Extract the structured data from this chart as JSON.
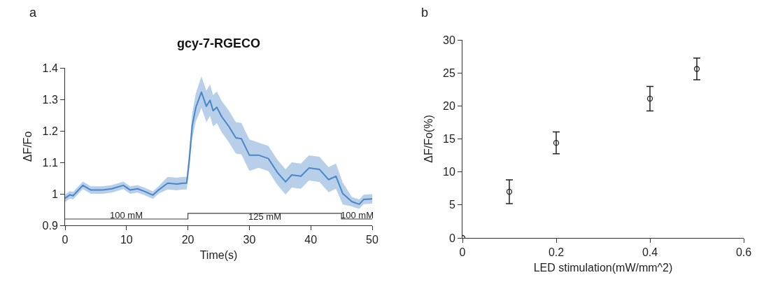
{
  "chart_data": [
    {
      "type": "line",
      "title": "gcy-7-RGECO",
      "xlabel": "Time(s)",
      "ylabel": "ΔF/Fo",
      "xlim": [
        0,
        50
      ],
      "xticks": [
        0,
        10,
        20,
        30,
        40,
        50
      ],
      "ylim": [
        0.9,
        1.4
      ],
      "yticks": [
        0.9,
        1,
        1.1,
        1.2,
        1.3,
        1.4
      ],
      "grid": false,
      "marker": "none",
      "series": [
        {
          "color": "#4a86c8",
          "x": [
            0,
            0.8,
            1.3,
            2.9,
            4.2,
            6.1,
            7.6,
            9.5,
            10.6,
            11.8,
            12.9,
            14.3,
            15.2,
            16.7,
            18.2,
            19.2,
            19.8,
            20.2,
            20.7,
            21.3,
            22.2,
            23.0,
            23.6,
            24.1,
            24.7,
            25.5,
            26.6,
            27.8,
            28.7,
            30.0,
            31.5,
            33.1,
            34.6,
            35.9,
            36.9,
            38.4,
            39.7,
            41.4,
            42.9,
            44.1,
            45.2,
            46.7,
            47.9,
            48.6,
            50
          ],
          "values": [
            0.986,
            0.997,
            0.994,
            1.027,
            1.012,
            1.012,
            1.016,
            1.027,
            1.012,
            1.016,
            1.008,
            0.996,
            1.012,
            1.034,
            1.031,
            1.034,
            1.034,
            1.104,
            1.216,
            1.275,
            1.323,
            1.278,
            1.297,
            1.264,
            1.275,
            1.245,
            1.216,
            1.178,
            1.175,
            1.123,
            1.123,
            1.112,
            1.067,
            1.038,
            1.06,
            1.056,
            1.082,
            1.078,
            1.045,
            1.056,
            1.001,
            0.975,
            0.967,
            0.982,
            0.984
          ],
          "lower": [
            0.974,
            0.985,
            0.982,
            1.015,
            1.0,
            1.0,
            1.004,
            1.015,
            1.0,
            1.004,
            0.996,
            0.984,
            1.0,
            1.014,
            1.011,
            1.014,
            1.014,
            1.074,
            1.176,
            1.23,
            1.273,
            1.228,
            1.247,
            1.214,
            1.225,
            1.195,
            1.166,
            1.128,
            1.125,
            1.073,
            1.083,
            1.072,
            1.027,
            0.998,
            1.02,
            1.016,
            1.042,
            1.038,
            1.005,
            1.016,
            0.966,
            0.96,
            0.952,
            0.967,
            0.969
          ],
          "upper": [
            0.998,
            1.009,
            1.006,
            1.039,
            1.024,
            1.024,
            1.028,
            1.039,
            1.024,
            1.028,
            1.02,
            1.008,
            1.024,
            1.054,
            1.051,
            1.054,
            1.054,
            1.134,
            1.256,
            1.32,
            1.373,
            1.328,
            1.347,
            1.314,
            1.325,
            1.295,
            1.266,
            1.228,
            1.225,
            1.173,
            1.163,
            1.152,
            1.107,
            1.078,
            1.1,
            1.096,
            1.122,
            1.118,
            1.085,
            1.096,
            1.036,
            0.99,
            0.982,
            0.997,
            0.999
          ]
        },
        {
          "type": "step",
          "color": "#404040",
          "x": [
            0,
            20,
            45,
            50
          ],
          "values": [
            0.92,
            0.938,
            0.92,
            0.92
          ]
        }
      ],
      "annotations": [
        "a",
        {
          "text": "100 mM",
          "x": 10,
          "y": 0.932
        },
        {
          "text": "125 mM",
          "x": 32.5,
          "y": 0.928
        },
        {
          "text": "100 mM",
          "x": 47.5,
          "y": 0.932
        }
      ]
    },
    {
      "type": "scatter",
      "xlabel": "LED stimulation(mW/mm^2)",
      "ylabel": "ΔF/Fo(%)",
      "xlim": [
        0,
        0.6
      ],
      "xticks": [
        0,
        0.2,
        0.4,
        0.6
      ],
      "ylim": [
        0,
        30
      ],
      "yticks": [
        0,
        5,
        10,
        15,
        20,
        25,
        30
      ],
      "grid": false,
      "marker": "circle",
      "series": [
        {
          "color": "#222222",
          "x": [
            0,
            0.1,
            0.2,
            0.4,
            0.5
          ],
          "values": [
            0,
            7.0,
            14.4,
            21.1,
            25.6
          ],
          "errors": [
            null,
            1.8,
            1.65,
            1.85,
            1.65
          ]
        }
      ],
      "annotations": [
        "b"
      ]
    }
  ]
}
